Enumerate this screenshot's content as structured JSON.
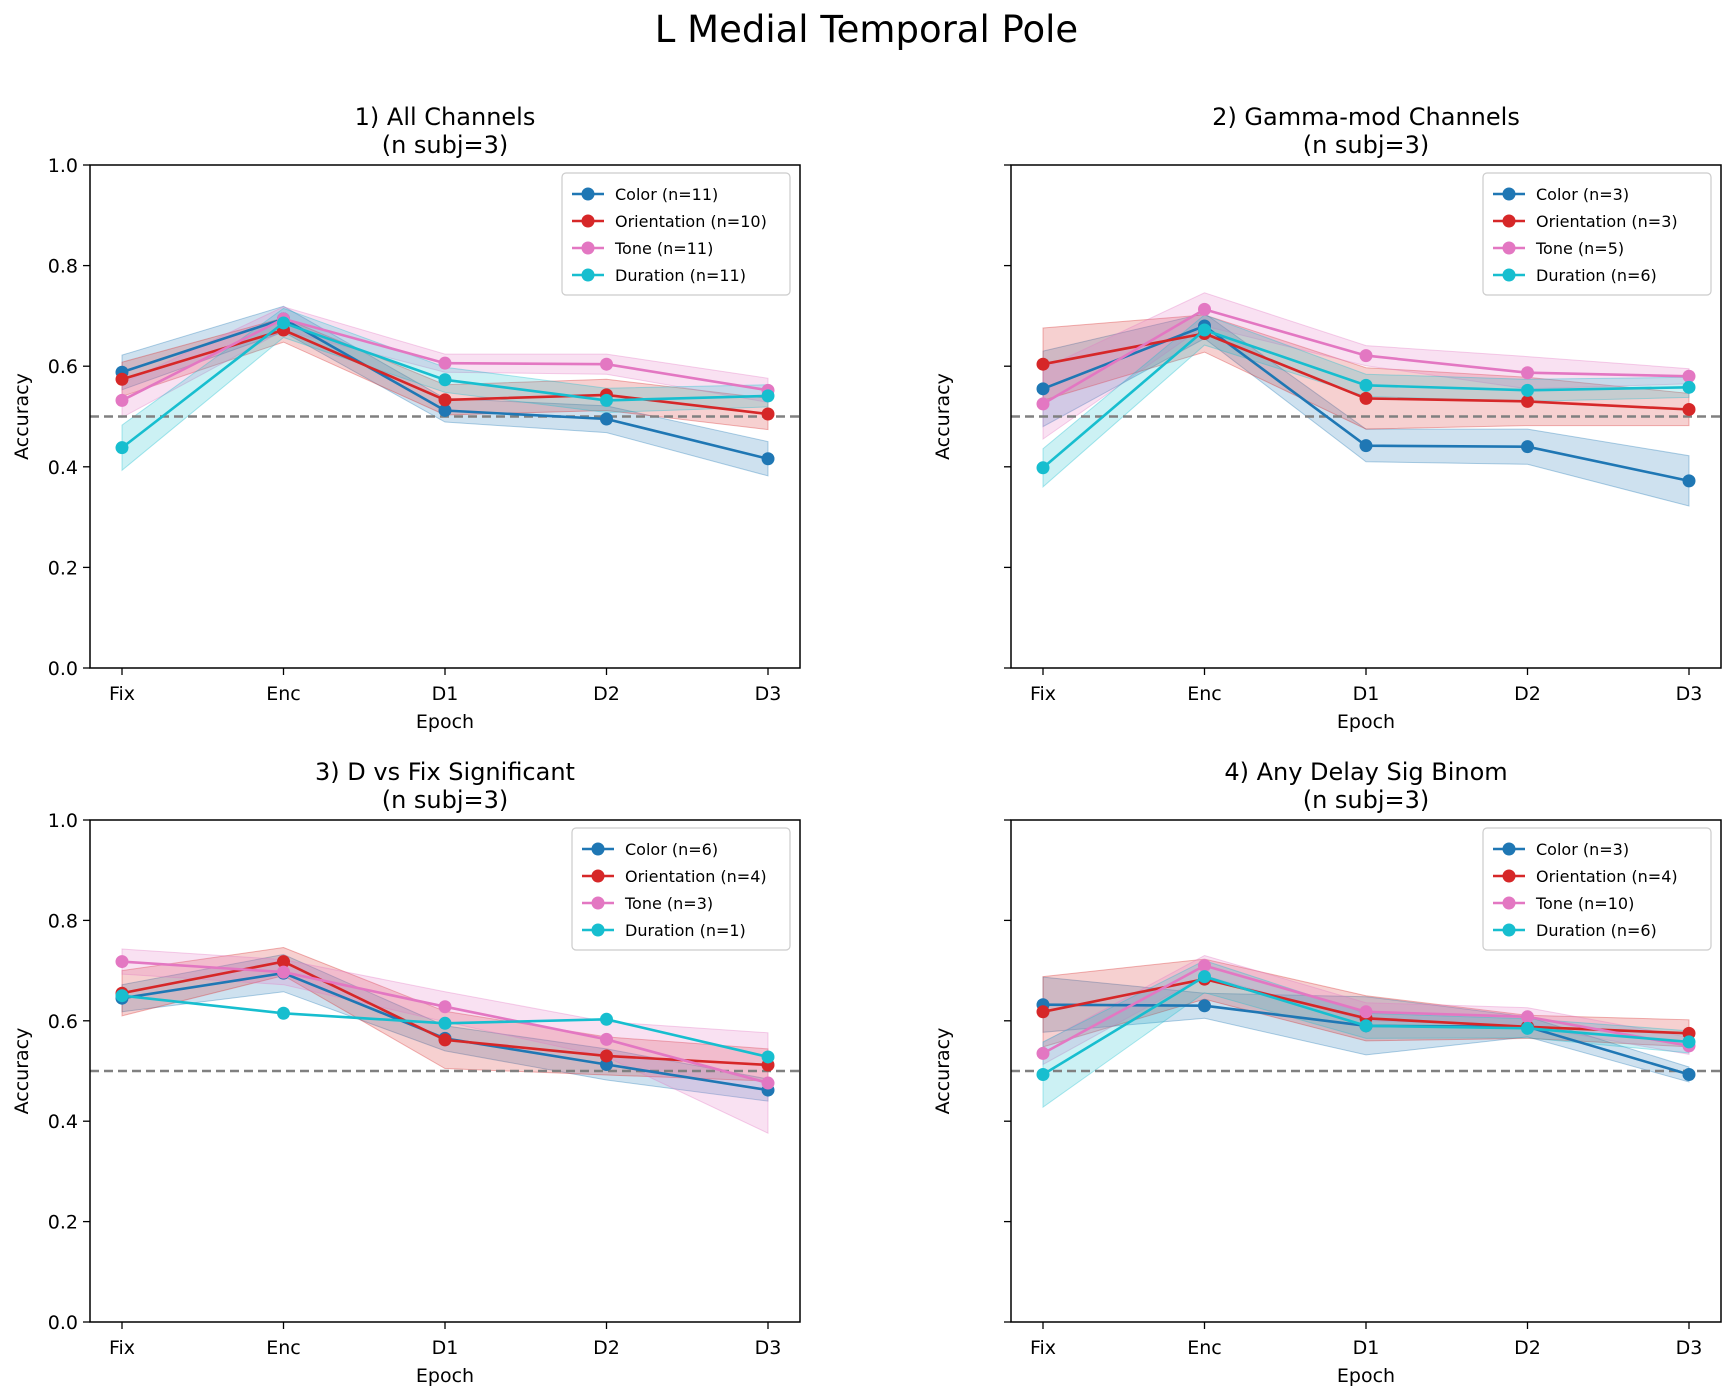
{
  "figure": {
    "title": "L Medial Temporal Pole"
  },
  "colors": {
    "Color": "#1f77b4",
    "Orientation": "#d62728",
    "Tone": "#e377c2",
    "Duration": "#17becf",
    "chance_line": "#808080"
  },
  "chart_data": [
    {
      "type": "line",
      "title": "1) All Channels\n(n subj=3)",
      "xlabel": "Epoch",
      "ylabel": "Accuracy",
      "categories": [
        "Fix",
        "Enc",
        "D1",
        "D2",
        "D3"
      ],
      "ylim": [
        0,
        1.0
      ],
      "yticks": [
        0.0,
        0.2,
        0.4,
        0.6,
        0.8,
        1.0
      ],
      "chance_line": 0.5,
      "legend": "top-right",
      "grid": false,
      "series": [
        {
          "name": "Color (n=11)",
          "key": "Color",
          "values": [
            0.588,
            0.694,
            0.512,
            0.495,
            0.416
          ],
          "lower": [
            0.553,
            0.668,
            0.489,
            0.468,
            0.382
          ],
          "upper": [
            0.622,
            0.719,
            0.536,
            0.521,
            0.45
          ]
        },
        {
          "name": "Orientation (n=10)",
          "key": "Orientation",
          "values": [
            0.574,
            0.672,
            0.533,
            0.543,
            0.505
          ],
          "lower": [
            0.54,
            0.648,
            0.503,
            0.512,
            0.474
          ],
          "upper": [
            0.608,
            0.696,
            0.563,
            0.574,
            0.536
          ]
        },
        {
          "name": "Tone (n=11)",
          "key": "Tone",
          "values": [
            0.532,
            0.694,
            0.606,
            0.604,
            0.552
          ],
          "lower": [
            0.498,
            0.671,
            0.588,
            0.584,
            0.528
          ],
          "upper": [
            0.566,
            0.718,
            0.624,
            0.624,
            0.576
          ]
        },
        {
          "name": "Duration (n=11)",
          "key": "Duration",
          "values": [
            0.438,
            0.686,
            0.573,
            0.532,
            0.541
          ],
          "lower": [
            0.393,
            0.657,
            0.548,
            0.508,
            0.519
          ],
          "upper": [
            0.483,
            0.715,
            0.598,
            0.556,
            0.563
          ]
        }
      ]
    },
    {
      "type": "line",
      "title": "2) Gamma-mod Channels\n(n subj=3)",
      "xlabel": "Epoch",
      "ylabel": "Accuracy",
      "categories": [
        "Fix",
        "Enc",
        "D1",
        "D2",
        "D3"
      ],
      "ylim": [
        0,
        1.0
      ],
      "yticks": [
        0.0,
        0.2,
        0.4,
        0.6,
        0.8,
        1.0
      ],
      "chance_line": 0.5,
      "legend": "top-right",
      "grid": false,
      "series": [
        {
          "name": "Color (n=3)",
          "key": "Color",
          "values": [
            0.555,
            0.68,
            0.442,
            0.44,
            0.372
          ],
          "lower": [
            0.48,
            0.655,
            0.41,
            0.405,
            0.322
          ],
          "upper": [
            0.63,
            0.705,
            0.475,
            0.475,
            0.422
          ]
        },
        {
          "name": "Orientation (n=3)",
          "key": "Orientation",
          "values": [
            0.604,
            0.665,
            0.536,
            0.53,
            0.514
          ],
          "lower": [
            0.532,
            0.628,
            0.475,
            0.482,
            0.482
          ],
          "upper": [
            0.676,
            0.702,
            0.597,
            0.578,
            0.546
          ]
        },
        {
          "name": "Tone (n=5)",
          "key": "Tone",
          "values": [
            0.525,
            0.713,
            0.621,
            0.587,
            0.58
          ],
          "lower": [
            0.455,
            0.68,
            0.601,
            0.555,
            0.565
          ],
          "upper": [
            0.595,
            0.746,
            0.641,
            0.619,
            0.595
          ]
        },
        {
          "name": "Duration (n=6)",
          "key": "Duration",
          "values": [
            0.398,
            0.672,
            0.562,
            0.552,
            0.558
          ],
          "lower": [
            0.36,
            0.642,
            0.54,
            0.53,
            0.538
          ],
          "upper": [
            0.436,
            0.702,
            0.584,
            0.574,
            0.578
          ]
        }
      ]
    },
    {
      "type": "line",
      "title": "3) D vs Fix Significant\n(n subj=3)",
      "xlabel": "Epoch",
      "ylabel": "Accuracy",
      "categories": [
        "Fix",
        "Enc",
        "D1",
        "D2",
        "D3"
      ],
      "ylim": [
        0,
        1.0
      ],
      "yticks": [
        0.0,
        0.2,
        0.4,
        0.6,
        0.8,
        1.0
      ],
      "chance_line": 0.5,
      "legend": "top-right",
      "grid": false,
      "series": [
        {
          "name": "Color (n=6)",
          "key": "Color",
          "values": [
            0.645,
            0.695,
            0.565,
            0.513,
            0.462
          ],
          "lower": [
            0.618,
            0.658,
            0.54,
            0.482,
            0.44
          ],
          "upper": [
            0.672,
            0.732,
            0.59,
            0.544,
            0.484
          ]
        },
        {
          "name": "Orientation (n=4)",
          "key": "Orientation",
          "values": [
            0.655,
            0.718,
            0.562,
            0.53,
            0.512
          ],
          "lower": [
            0.61,
            0.69,
            0.505,
            0.492,
            0.48
          ],
          "upper": [
            0.7,
            0.746,
            0.619,
            0.568,
            0.544
          ]
        },
        {
          "name": "Tone (n=3)",
          "key": "Tone",
          "values": [
            0.718,
            0.697,
            0.628,
            0.563,
            0.476
          ],
          "lower": [
            0.693,
            0.672,
            0.598,
            0.528,
            0.376
          ],
          "upper": [
            0.743,
            0.722,
            0.658,
            0.598,
            0.576
          ]
        },
        {
          "name": "Duration (n=1)",
          "key": "Duration",
          "values": [
            0.65,
            0.615,
            0.595,
            0.603,
            0.528
          ],
          "lower": null,
          "upper": null
        }
      ]
    },
    {
      "type": "line",
      "title": "4) Any Delay Sig Binom\n(n subj=3)",
      "xlabel": "Epoch",
      "ylabel": "Accuracy",
      "categories": [
        "Fix",
        "Enc",
        "D1",
        "D2",
        "D3"
      ],
      "ylim": [
        0,
        1.0
      ],
      "yticks": [
        0.0,
        0.2,
        0.4,
        0.6,
        0.8,
        1.0
      ],
      "chance_line": 0.5,
      "legend": "top-right",
      "grid": false,
      "series": [
        {
          "name": "Color (n=3)",
          "key": "Color",
          "values": [
            0.632,
            0.63,
            0.59,
            0.588,
            0.493
          ],
          "lower": [
            0.577,
            0.605,
            0.532,
            0.568,
            0.478
          ],
          "upper": [
            0.687,
            0.655,
            0.648,
            0.608,
            0.508
          ]
        },
        {
          "name": "Orientation (n=4)",
          "key": "Orientation",
          "values": [
            0.618,
            0.683,
            0.605,
            0.588,
            0.575
          ],
          "lower": [
            0.548,
            0.643,
            0.56,
            0.565,
            0.548
          ],
          "upper": [
            0.688,
            0.723,
            0.65,
            0.611,
            0.602
          ]
        },
        {
          "name": "Tone (n=10)",
          "key": "Tone",
          "values": [
            0.535,
            0.71,
            0.618,
            0.608,
            0.55
          ],
          "lower": [
            0.513,
            0.69,
            0.6,
            0.59,
            0.533
          ],
          "upper": [
            0.557,
            0.73,
            0.636,
            0.626,
            0.567
          ]
        },
        {
          "name": "Duration (n=6)",
          "key": "Duration",
          "values": [
            0.493,
            0.688,
            0.59,
            0.585,
            0.558
          ],
          "lower": [
            0.428,
            0.656,
            0.565,
            0.566,
            0.536
          ],
          "upper": [
            0.558,
            0.72,
            0.615,
            0.604,
            0.58
          ]
        }
      ]
    }
  ]
}
